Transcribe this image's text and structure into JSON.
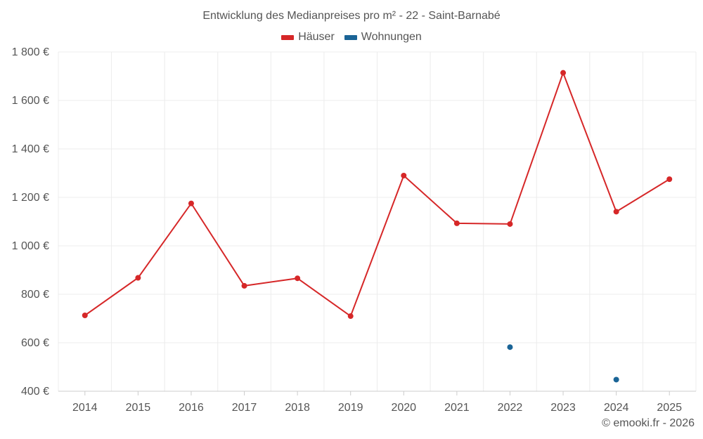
{
  "chart_data": {
    "type": "line",
    "title": "Entwicklung des Medianpreises pro m² - 22 - Saint-Barnabé",
    "categories": [
      "2014",
      "2015",
      "2016",
      "2017",
      "2018",
      "2019",
      "2020",
      "2021",
      "2022",
      "2023",
      "2024",
      "2025"
    ],
    "series": [
      {
        "name": "Häuser",
        "color": "#d62728",
        "values": [
          713,
          868,
          1175,
          835,
          866,
          710,
          1290,
          1093,
          1090,
          1714,
          1141,
          1275
        ]
      },
      {
        "name": "Wohnungen",
        "color": "#1a6496",
        "values": [
          null,
          null,
          null,
          null,
          null,
          null,
          null,
          null,
          582,
          null,
          448,
          null
        ]
      }
    ],
    "yticks": [
      "400 €",
      "600 €",
      "800 €",
      "1 000 €",
      "1 200 €",
      "1 400 €",
      "1 600 €",
      "1 800 €"
    ],
    "ylim": [
      400,
      1800
    ],
    "grid": true,
    "legend": "top-center"
  },
  "credit": "© emooki.fr - 2026"
}
